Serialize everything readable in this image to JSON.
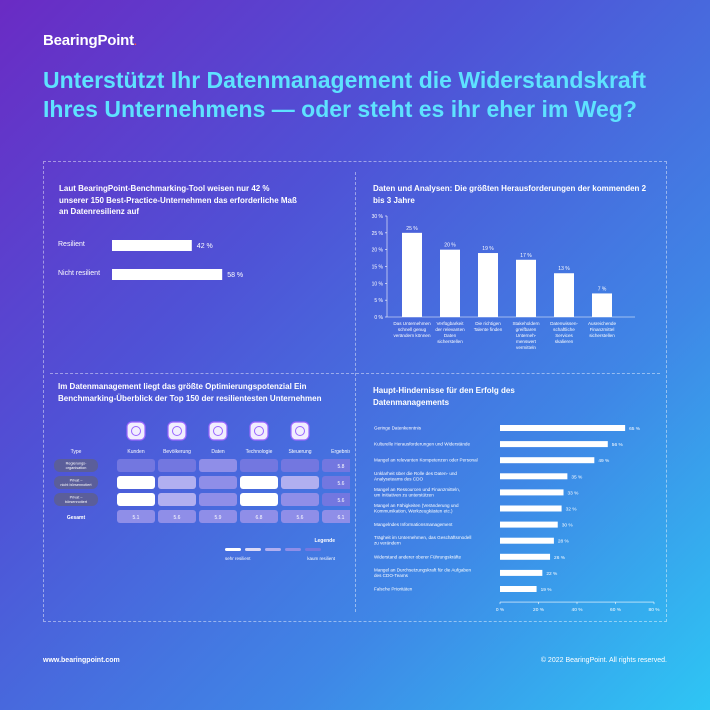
{
  "brand": {
    "name": "BearingPoint",
    "dot": "."
  },
  "headline": "Unterstützt Ihr Datenmanagement die Widerstandskraft Ihres Unternehmens — oder steht es ihr eher im Weg?",
  "footer": {
    "website": "www.bearingpoint.com",
    "copyright": "© 2022 BearingPoint. All rights reserved."
  },
  "legend": {
    "title": "Legende",
    "low": "sehr resilient",
    "high": "kaum resilient"
  },
  "colors": {
    "headline": "#5ee2ff",
    "bar": "#ffffff",
    "icon_ring": "#9a66ff",
    "levels": [
      "#ffffff",
      "#dcdaf6",
      "#b1aff0",
      "#8f8ee8",
      "#7377e0"
    ],
    "type_pill": "#5b5e9a"
  },
  "chart_data": [
    {
      "type": "bar",
      "orientation": "horizontal",
      "title": "Laut BearingPoint-Benchmarking-Tool weisen nur 42 % unserer 150 Best-Practice-Unternehmen das erforderliche Maß an Datenresilienz auf",
      "categories": [
        "Resilient",
        "Nicht resilient"
      ],
      "values": [
        42,
        58
      ],
      "value_labels": [
        "42 %",
        "58 %"
      ],
      "unit": "%"
    },
    {
      "type": "bar",
      "orientation": "vertical",
      "title": "Daten und Analysen: Die größten Herausforderungen der kommenden 2 bis 3 Jahre",
      "categories": [
        [
          "Das Unternehmen",
          "schnell genug",
          "verändern können"
        ],
        [
          "Verfügbarkeit",
          "der relevanten",
          "Daten",
          "sicherstellen"
        ],
        [
          "Die richtigen",
          "Talente finden"
        ],
        [
          "Stakeholdern",
          "greifbaren",
          "Unterneh-",
          "menswert",
          "vermitteln"
        ],
        [
          "Datenwissen-",
          "schaftliche",
          "Services",
          "skalieren"
        ],
        [
          "Ausreichende",
          "Finanzmittel",
          "sicherstellen"
        ]
      ],
      "values": [
        25,
        20,
        19,
        17,
        13,
        7
      ],
      "value_labels": [
        "25 %",
        "20 %",
        "19 %",
        "17 %",
        "13 %",
        "7 %"
      ],
      "ylim": [
        0,
        30
      ],
      "yticks": [
        "0 %",
        "5 %",
        "10 %",
        "15 %",
        "20 %",
        "25 %",
        "30 %"
      ],
      "grid": false
    },
    {
      "type": "heatmap",
      "title": "Im Datenmanagement liegt das größte Optimierungspotenzial Ein Benchmarking-Überblick der Top 150 der resilientesten Unternehmen",
      "row_header": "Type",
      "columns": [
        "Kunden",
        "Bevölkerung",
        "Daten",
        "Technologie",
        "Steuerung",
        "Ergebnis"
      ],
      "column_icons": [
        "people-icon",
        "coins-icon",
        "chart-icon",
        "cycle-icon",
        "compass-icon"
      ],
      "rows": [
        {
          "label": "Regierungs-organisation",
          "levels": [
            4,
            4,
            3,
            4,
            4
          ],
          "result": "5.8"
        },
        {
          "label": "Privat – nicht börsennotiert",
          "levels": [
            0,
            2,
            3,
            0,
            2
          ],
          "result": "5.6"
        },
        {
          "label": "Privat – börsennotiert",
          "levels": [
            0,
            2,
            3,
            0,
            3
          ],
          "result": "5.6"
        }
      ],
      "total": {
        "label": "Gesamt",
        "values": [
          "5.1",
          "5.6",
          "5.9",
          "6.8",
          "5.6",
          "6.1"
        ]
      }
    },
    {
      "type": "bar",
      "orientation": "horizontal",
      "title": "Haupt-Hindernisse für den Erfolg des Datenmanagements",
      "categories": [
        [
          "Geringe Datenkenntnis"
        ],
        [
          "Kulturelle Herausforderungen und Widerstände"
        ],
        [
          "Mangel an relevanten Kompetenzen oder Personal"
        ],
        [
          "Unklarheit über die Rolle des Daten- und",
          "Analyseteams des CDO"
        ],
        [
          "Mangel an Ressourcen und Finanzmitteln,",
          "um Initiativen zu unterstützen"
        ],
        [
          "Mangel an Fähigkeiten (Veränderung und",
          "Kommunikation, Werkzeugkästen etc.)"
        ],
        [
          "Mangelndes Informationsmanagement"
        ],
        [
          "Trägheit im Unternehmen, das Geschäftsmodell",
          "zu verändern"
        ],
        [
          "Widerstand anderer oberer Führungskräfte"
        ],
        [
          "Mangel an Durchsetzungskraft für die Aufgaben",
          "des CDO-Teams"
        ],
        [
          "Falsche Prioritäten"
        ]
      ],
      "values": [
        65,
        56,
        49,
        35,
        33,
        32,
        30,
        28,
        26,
        22,
        19
      ],
      "value_labels": [
        "65 %",
        "56 %",
        "49 %",
        "35 %",
        "33 %",
        "32 %",
        "30 %",
        "28 %",
        "26 %",
        "22 %",
        "19 %"
      ],
      "xlim": [
        0,
        80
      ],
      "xticks": [
        "0 %",
        "20 %",
        "40 %",
        "60 %",
        "80 %"
      ]
    }
  ]
}
